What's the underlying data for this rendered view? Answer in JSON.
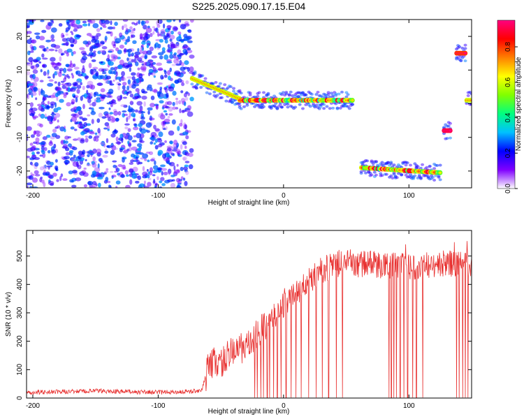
{
  "title": "S225.2025.090.17.15.E04",
  "chart_data": [
    {
      "type": "heatmap",
      "xlabel": "Height of straight line (km)",
      "ylabel": "Frequency (Hz)",
      "xlim": [
        -205,
        150
      ],
      "ylim": [
        -25,
        25
      ],
      "xticks": [
        -200,
        -100,
        0,
        100
      ],
      "yticks": [
        -20,
        -10,
        0,
        10,
        20
      ],
      "colorbar": {
        "label": "Normalized spectral amplitude",
        "range": [
          0,
          0.95
        ],
        "ticks": [
          "0.0",
          "0.2",
          "0.4",
          "0.6",
          "0.8"
        ],
        "colormap": [
          "#ffffff",
          "#8000ff",
          "#0000ff",
          "#00c0ff",
          "#00ff80",
          "#80ff00",
          "#ffff00",
          "#ff8000",
          "#ff0000",
          "#ff0080"
        ]
      },
      "regions": [
        {
          "x": [
            -205,
            -73
          ],
          "freq_range": [
            -25,
            25
          ],
          "amplitude": [
            0.05,
            0.3
          ],
          "kind": "broadband noise"
        },
        {
          "x": [
            -73,
            -35
          ],
          "freq_start": 7.5,
          "freq_end": 1.5,
          "amplitude": 0.6,
          "kind": "descending line"
        },
        {
          "x": [
            -35,
            55
          ],
          "freq_start": 1,
          "freq_end": 1,
          "amplitude": [
            0.35,
            0.9
          ],
          "kind": "line"
        },
        {
          "x": [
            62,
            125
          ],
          "freq_start": -19,
          "freq_end": -20.5,
          "amplitude": [
            0.4,
            0.9
          ],
          "kind": "line"
        },
        {
          "x": [
            128,
            133
          ],
          "freq_start": -8,
          "freq_end": -8,
          "amplitude": 0.9,
          "kind": "spot"
        },
        {
          "x": [
            138,
            145
          ],
          "freq_start": 15,
          "freq_end": 15,
          "amplitude": 0.8,
          "kind": "spot"
        },
        {
          "x": [
            146,
            150
          ],
          "freq_start": 1,
          "freq_end": 1,
          "amplitude": 0.6,
          "kind": "spot"
        }
      ]
    },
    {
      "type": "line",
      "xlabel": "Height of straight line (km)",
      "ylabel": "SNR (10 * v/v)",
      "xlim": [
        -205,
        150
      ],
      "ylim": [
        0,
        590
      ],
      "xticks": [
        -200,
        -100,
        0,
        100
      ],
      "yticks": [
        0,
        100,
        200,
        300,
        400,
        500
      ],
      "color": "#e8302f",
      "series": [
        {
          "x": [
            -205,
            -180,
            -150,
            -120,
            -100,
            -80,
            -70,
            -65,
            -60,
            -55,
            -50,
            -45,
            -40,
            -35,
            -30,
            -25,
            -20,
            -15,
            -10,
            -5,
            0,
            5,
            10,
            15,
            20,
            25,
            30,
            35,
            40,
            45,
            50,
            60,
            70,
            80,
            90,
            100,
            110,
            120,
            130,
            140,
            150
          ],
          "values": [
            20,
            22,
            25,
            22,
            20,
            22,
            25,
            30,
            110,
            130,
            120,
            150,
            160,
            180,
            170,
            200,
            230,
            250,
            270,
            300,
            330,
            350,
            370,
            390,
            410,
            430,
            450,
            460,
            470,
            475,
            480,
            470,
            475,
            465,
            470,
            460,
            470,
            465,
            475,
            470,
            465
          ]
        }
      ],
      "dropouts_x": [
        -23,
        -21,
        -18,
        -16,
        -13,
        -11,
        -8,
        -5,
        -2,
        2,
        6,
        10,
        14,
        20,
        26,
        31,
        36,
        42,
        47,
        84,
        86,
        88,
        90,
        93,
        96,
        99,
        103,
        106,
        111,
        138,
        140,
        143,
        145,
        147
      ]
    }
  ]
}
